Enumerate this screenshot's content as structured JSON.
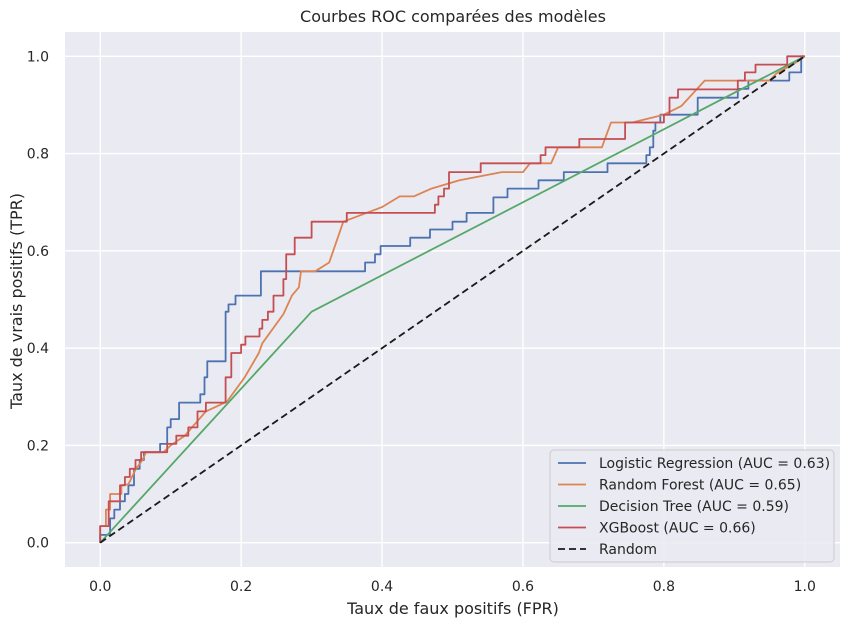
{
  "chart_data": {
    "type": "line",
    "title": "Courbes ROC comparées des modèles",
    "xlabel": "Taux de faux positifs (FPR)",
    "ylabel": "Taux de vrais positifs (TPR)",
    "xlim": [
      -0.05,
      1.05
    ],
    "ylim": [
      -0.05,
      1.05
    ],
    "xticks": [
      0.0,
      0.2,
      0.4,
      0.6,
      0.8,
      1.0
    ],
    "yticks": [
      0.0,
      0.2,
      0.4,
      0.6,
      0.8,
      1.0
    ],
    "tick_labels": [
      "0.0",
      "0.2",
      "0.4",
      "0.6",
      "0.8",
      "1.0"
    ],
    "grid": true,
    "background": "#eaeaf2",
    "legend_position": "lower right",
    "series": [
      {
        "name": "Logistic Regression (AUC = 0.63)",
        "color": "#4c72b0",
        "style": "solid",
        "points": [
          [
            0,
            0
          ],
          [
            0,
            0.016
          ],
          [
            0.014,
            0.016
          ],
          [
            0.014,
            0.05
          ],
          [
            0.02,
            0.05
          ],
          [
            0.02,
            0.068
          ],
          [
            0.028,
            0.068
          ],
          [
            0.028,
            0.085
          ],
          [
            0.035,
            0.085
          ],
          [
            0.035,
            0.1
          ],
          [
            0.04,
            0.1
          ],
          [
            0.04,
            0.118
          ],
          [
            0.048,
            0.118
          ],
          [
            0.048,
            0.152
          ],
          [
            0.056,
            0.152
          ],
          [
            0.056,
            0.17
          ],
          [
            0.062,
            0.17
          ],
          [
            0.062,
            0.186
          ],
          [
            0.085,
            0.186
          ],
          [
            0.085,
            0.203
          ],
          [
            0.095,
            0.203
          ],
          [
            0.095,
            0.237
          ],
          [
            0.1,
            0.237
          ],
          [
            0.1,
            0.254
          ],
          [
            0.112,
            0.254
          ],
          [
            0.112,
            0.288
          ],
          [
            0.142,
            0.288
          ],
          [
            0.142,
            0.305
          ],
          [
            0.148,
            0.305
          ],
          [
            0.148,
            0.34
          ],
          [
            0.152,
            0.34
          ],
          [
            0.152,
            0.373
          ],
          [
            0.178,
            0.373
          ],
          [
            0.178,
            0.475
          ],
          [
            0.182,
            0.475
          ],
          [
            0.182,
            0.49
          ],
          [
            0.192,
            0.49
          ],
          [
            0.192,
            0.508
          ],
          [
            0.228,
            0.508
          ],
          [
            0.228,
            0.558
          ],
          [
            0.376,
            0.558
          ],
          [
            0.376,
            0.576
          ],
          [
            0.39,
            0.576
          ],
          [
            0.39,
            0.593
          ],
          [
            0.398,
            0.593
          ],
          [
            0.398,
            0.61
          ],
          [
            0.44,
            0.61
          ],
          [
            0.44,
            0.627
          ],
          [
            0.468,
            0.627
          ],
          [
            0.468,
            0.644
          ],
          [
            0.5,
            0.644
          ],
          [
            0.5,
            0.66
          ],
          [
            0.52,
            0.66
          ],
          [
            0.52,
            0.678
          ],
          [
            0.558,
            0.678
          ],
          [
            0.558,
            0.71
          ],
          [
            0.578,
            0.71
          ],
          [
            0.578,
            0.728
          ],
          [
            0.622,
            0.728
          ],
          [
            0.622,
            0.745
          ],
          [
            0.658,
            0.745
          ],
          [
            0.658,
            0.762
          ],
          [
            0.72,
            0.762
          ],
          [
            0.72,
            0.78
          ],
          [
            0.775,
            0.78
          ],
          [
            0.775,
            0.797
          ],
          [
            0.78,
            0.797
          ],
          [
            0.78,
            0.813
          ],
          [
            0.785,
            0.813
          ],
          [
            0.785,
            0.847
          ],
          [
            0.788,
            0.847
          ],
          [
            0.788,
            0.864
          ],
          [
            0.795,
            0.864
          ],
          [
            0.795,
            0.88
          ],
          [
            0.848,
            0.88
          ],
          [
            0.848,
            0.915
          ],
          [
            0.905,
            0.915
          ],
          [
            0.905,
            0.933
          ],
          [
            0.92,
            0.933
          ],
          [
            0.92,
            0.95
          ],
          [
            0.978,
            0.95
          ],
          [
            0.978,
            0.967
          ],
          [
            0.995,
            0.967
          ],
          [
            0.995,
            1.0
          ],
          [
            1.0,
            1.0
          ]
        ]
      },
      {
        "name": "Random Forest (AUC = 0.65)",
        "color": "#dd8452",
        "style": "solid",
        "points": [
          [
            0,
            0
          ],
          [
            0,
            0.034
          ],
          [
            0.008,
            0.034
          ],
          [
            0.008,
            0.068
          ],
          [
            0.014,
            0.068
          ],
          [
            0.014,
            0.1
          ],
          [
            0.03,
            0.1
          ],
          [
            0.03,
            0.118
          ],
          [
            0.04,
            0.12
          ],
          [
            0.05,
            0.15
          ],
          [
            0.06,
            0.17
          ],
          [
            0.065,
            0.186
          ],
          [
            0.09,
            0.186
          ],
          [
            0.1,
            0.2
          ],
          [
            0.12,
            0.22
          ],
          [
            0.15,
            0.27
          ],
          [
            0.18,
            0.29
          ],
          [
            0.205,
            0.34
          ],
          [
            0.225,
            0.39
          ],
          [
            0.23,
            0.41
          ],
          [
            0.26,
            0.47
          ],
          [
            0.272,
            0.508
          ],
          [
            0.282,
            0.525
          ],
          [
            0.285,
            0.558
          ],
          [
            0.305,
            0.558
          ],
          [
            0.325,
            0.576
          ],
          [
            0.345,
            0.66
          ],
          [
            0.4,
            0.69
          ],
          [
            0.425,
            0.712
          ],
          [
            0.445,
            0.712
          ],
          [
            0.47,
            0.728
          ],
          [
            0.51,
            0.745
          ],
          [
            0.57,
            0.762
          ],
          [
            0.6,
            0.762
          ],
          [
            0.61,
            0.78
          ],
          [
            0.64,
            0.78
          ],
          [
            0.65,
            0.813
          ],
          [
            0.712,
            0.813
          ],
          [
            0.725,
            0.864
          ],
          [
            0.755,
            0.864
          ],
          [
            0.8,
            0.88
          ],
          [
            0.825,
            0.898
          ],
          [
            0.858,
            0.95
          ],
          [
            0.95,
            0.95
          ],
          [
            0.96,
            0.965
          ],
          [
            0.985,
            0.985
          ],
          [
            1.0,
            1.0
          ]
        ]
      },
      {
        "name": "Decision Tree (AUC = 0.59)",
        "color": "#55a868",
        "style": "solid",
        "points": [
          [
            0,
            0
          ],
          [
            0.3,
            0.475
          ],
          [
            1.0,
            1.0
          ]
        ]
      },
      {
        "name": "XGBoost (AUC = 0.66)",
        "color": "#c44e52",
        "style": "solid",
        "points": [
          [
            0,
            0
          ],
          [
            0,
            0.034
          ],
          [
            0.012,
            0.034
          ],
          [
            0.012,
            0.085
          ],
          [
            0.028,
            0.085
          ],
          [
            0.028,
            0.118
          ],
          [
            0.035,
            0.118
          ],
          [
            0.035,
            0.135
          ],
          [
            0.042,
            0.135
          ],
          [
            0.042,
            0.152
          ],
          [
            0.05,
            0.152
          ],
          [
            0.05,
            0.17
          ],
          [
            0.058,
            0.17
          ],
          [
            0.058,
            0.186
          ],
          [
            0.095,
            0.186
          ],
          [
            0.095,
            0.203
          ],
          [
            0.108,
            0.203
          ],
          [
            0.108,
            0.22
          ],
          [
            0.125,
            0.22
          ],
          [
            0.125,
            0.237
          ],
          [
            0.138,
            0.237
          ],
          [
            0.138,
            0.27
          ],
          [
            0.15,
            0.27
          ],
          [
            0.15,
            0.288
          ],
          [
            0.178,
            0.288
          ],
          [
            0.178,
            0.34
          ],
          [
            0.186,
            0.34
          ],
          [
            0.186,
            0.39
          ],
          [
            0.2,
            0.39
          ],
          [
            0.2,
            0.407
          ],
          [
            0.206,
            0.407
          ],
          [
            0.206,
            0.424
          ],
          [
            0.226,
            0.424
          ],
          [
            0.226,
            0.44
          ],
          [
            0.23,
            0.44
          ],
          [
            0.23,
            0.458
          ],
          [
            0.238,
            0.458
          ],
          [
            0.238,
            0.475
          ],
          [
            0.246,
            0.475
          ],
          [
            0.246,
            0.508
          ],
          [
            0.26,
            0.508
          ],
          [
            0.26,
            0.542
          ],
          [
            0.264,
            0.542
          ],
          [
            0.264,
            0.593
          ],
          [
            0.276,
            0.593
          ],
          [
            0.276,
            0.627
          ],
          [
            0.3,
            0.627
          ],
          [
            0.3,
            0.66
          ],
          [
            0.35,
            0.66
          ],
          [
            0.35,
            0.678
          ],
          [
            0.475,
            0.678
          ],
          [
            0.475,
            0.695
          ],
          [
            0.48,
            0.695
          ],
          [
            0.48,
            0.712
          ],
          [
            0.488,
            0.712
          ],
          [
            0.488,
            0.728
          ],
          [
            0.495,
            0.728
          ],
          [
            0.495,
            0.762
          ],
          [
            0.54,
            0.762
          ],
          [
            0.54,
            0.78
          ],
          [
            0.625,
            0.78
          ],
          [
            0.625,
            0.797
          ],
          [
            0.632,
            0.797
          ],
          [
            0.632,
            0.813
          ],
          [
            0.68,
            0.813
          ],
          [
            0.68,
            0.83
          ],
          [
            0.745,
            0.83
          ],
          [
            0.745,
            0.864
          ],
          [
            0.8,
            0.864
          ],
          [
            0.8,
            0.88
          ],
          [
            0.808,
            0.88
          ],
          [
            0.808,
            0.915
          ],
          [
            0.82,
            0.915
          ],
          [
            0.82,
            0.932
          ],
          [
            0.905,
            0.932
          ],
          [
            0.905,
            0.95
          ],
          [
            0.915,
            0.95
          ],
          [
            0.915,
            0.967
          ],
          [
            0.93,
            0.967
          ],
          [
            0.93,
            0.983
          ],
          [
            0.975,
            0.983
          ],
          [
            0.975,
            1.0
          ],
          [
            1.0,
            1.0
          ]
        ]
      },
      {
        "name": "Random",
        "color": "#1a1a1a",
        "style": "dashed",
        "points": [
          [
            0,
            0
          ],
          [
            1,
            1
          ]
        ]
      }
    ]
  }
}
